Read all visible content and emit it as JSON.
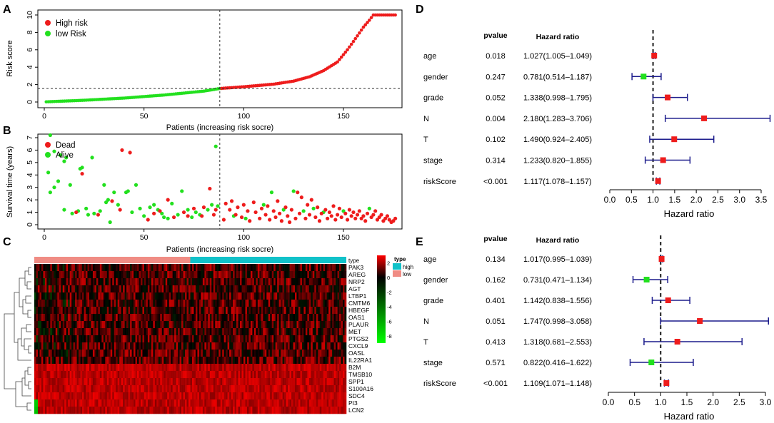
{
  "colors": {
    "high": "#ee1c1c",
    "low": "#22e01e",
    "dead": "#ee1c1c",
    "alive": "#22e01e",
    "navy": "#1c1c8c",
    "type_high": "#11c2c9",
    "type_low": "#f08c84",
    "heat_red": "#ff0000",
    "heat_black": "#000000",
    "heat_green": "#00ff00"
  },
  "chart_data": [
    {
      "panel": "A",
      "type": "scatter",
      "title": "",
      "xlabel": "Patients (increasing risk socre)",
      "ylabel": "Risk score",
      "xlim": [
        0,
        178
      ],
      "ylim": [
        0,
        10.5
      ],
      "xticks": [
        0,
        50,
        100,
        150
      ],
      "yticks": [
        0,
        2,
        4,
        6,
        8,
        10
      ],
      "cutoff_x": 88,
      "cutoff_y": 1.55,
      "n_patients": 176,
      "series": [
        {
          "name": "High risk",
          "color_key": "high"
        },
        {
          "name": "low Risk",
          "color_key": "low"
        }
      ],
      "curve_anchors": {
        "x": [
          1,
          20,
          40,
          60,
          80,
          88,
          100,
          115,
          125,
          133,
          140,
          147,
          152,
          157,
          160,
          163,
          165,
          176
        ],
        "y": [
          0.02,
          0.2,
          0.45,
          0.8,
          1.25,
          1.55,
          1.75,
          2.05,
          2.4,
          2.9,
          3.6,
          4.6,
          6.0,
          7.6,
          8.6,
          9.4,
          10.0,
          10.0
        ]
      },
      "legend": [
        "High risk",
        "low Risk"
      ]
    },
    {
      "panel": "B",
      "type": "scatter",
      "title": "",
      "xlabel": "Patients (increasing risk socre)",
      "ylabel": "Survival time (years)",
      "xlim": [
        0,
        178
      ],
      "ylim": [
        0,
        7.3
      ],
      "xticks": [
        0,
        50,
        100,
        150
      ],
      "yticks": [
        0,
        1,
        2,
        3,
        4,
        5,
        6,
        7
      ],
      "cutoff_x": 88,
      "series": [
        {
          "name": "Dead",
          "color_key": "dead"
        },
        {
          "name": "Alive",
          "color_key": "alive"
        }
      ],
      "legend": [
        "Dead",
        "Alive"
      ],
      "points": [
        {
          "x": 2,
          "y": 4.2,
          "s": "Alive"
        },
        {
          "x": 3,
          "y": 7.2,
          "s": "Alive"
        },
        {
          "x": 3,
          "y": 2.6,
          "s": "Alive"
        },
        {
          "x": 5,
          "y": 5.9,
          "s": "Alive"
        },
        {
          "x": 5,
          "y": 3.0,
          "s": "Alive"
        },
        {
          "x": 7,
          "y": 3.5,
          "s": "Alive"
        },
        {
          "x": 8,
          "y": 5.6,
          "s": "Alive"
        },
        {
          "x": 10,
          "y": 5.1,
          "s": "Alive"
        },
        {
          "x": 10,
          "y": 1.2,
          "s": "Alive"
        },
        {
          "x": 11,
          "y": 5.4,
          "s": "Alive"
        },
        {
          "x": 13,
          "y": 3.2,
          "s": "Alive"
        },
        {
          "x": 14,
          "y": 0.9,
          "s": "Alive"
        },
        {
          "x": 17,
          "y": 1.1,
          "s": "Alive"
        },
        {
          "x": 18,
          "y": 4.5,
          "s": "Alive"
        },
        {
          "x": 19,
          "y": 4.6,
          "s": "Alive"
        },
        {
          "x": 21,
          "y": 1.3,
          "s": "Alive"
        },
        {
          "x": 22,
          "y": 0.8,
          "s": "Alive"
        },
        {
          "x": 24,
          "y": 5.4,
          "s": "Alive"
        },
        {
          "x": 25,
          "y": 0.9,
          "s": "Alive"
        },
        {
          "x": 28,
          "y": 1.1,
          "s": "Alive"
        },
        {
          "x": 30,
          "y": 3.2,
          "s": "Alive"
        },
        {
          "x": 31,
          "y": 1.8,
          "s": "Alive"
        },
        {
          "x": 32,
          "y": 2.0,
          "s": "Alive"
        },
        {
          "x": 33,
          "y": 0.2,
          "s": "Alive"
        },
        {
          "x": 35,
          "y": 2.6,
          "s": "Alive"
        },
        {
          "x": 37,
          "y": 1.6,
          "s": "Alive"
        },
        {
          "x": 41,
          "y": 2.6,
          "s": "Alive"
        },
        {
          "x": 42,
          "y": 2.7,
          "s": "Alive"
        },
        {
          "x": 44,
          "y": 1.0,
          "s": "Alive"
        },
        {
          "x": 46,
          "y": 3.2,
          "s": "Alive"
        },
        {
          "x": 48,
          "y": 1.3,
          "s": "Alive"
        },
        {
          "x": 50,
          "y": 0.7,
          "s": "Alive"
        },
        {
          "x": 53,
          "y": 1.4,
          "s": "Alive"
        },
        {
          "x": 55,
          "y": 1.6,
          "s": "Alive"
        },
        {
          "x": 57,
          "y": 1.2,
          "s": "Alive"
        },
        {
          "x": 59,
          "y": 0.9,
          "s": "Alive"
        },
        {
          "x": 60,
          "y": 0.6,
          "s": "Alive"
        },
        {
          "x": 62,
          "y": 0.5,
          "s": "Alive"
        },
        {
          "x": 64,
          "y": 1.7,
          "s": "Alive"
        },
        {
          "x": 67,
          "y": 0.8,
          "s": "Alive"
        },
        {
          "x": 69,
          "y": 2.7,
          "s": "Alive"
        },
        {
          "x": 72,
          "y": 1.2,
          "s": "Alive"
        },
        {
          "x": 74,
          "y": 0.6,
          "s": "Alive"
        },
        {
          "x": 76,
          "y": 1.0,
          "s": "Alive"
        },
        {
          "x": 78,
          "y": 0.8,
          "s": "Alive"
        },
        {
          "x": 82,
          "y": 1.2,
          "s": "Alive"
        },
        {
          "x": 84,
          "y": 1.6,
          "s": "Alive"
        },
        {
          "x": 86,
          "y": 6.3,
          "s": "Alive"
        },
        {
          "x": 87,
          "y": 1.5,
          "s": "Alive"
        },
        {
          "x": 95,
          "y": 0.7,
          "s": "Alive"
        },
        {
          "x": 101,
          "y": 0.5,
          "s": "Alive"
        },
        {
          "x": 110,
          "y": 1.6,
          "s": "Alive"
        },
        {
          "x": 114,
          "y": 2.6,
          "s": "Alive"
        },
        {
          "x": 120,
          "y": 1.2,
          "s": "Alive"
        },
        {
          "x": 125,
          "y": 2.7,
          "s": "Alive"
        },
        {
          "x": 130,
          "y": 1.1,
          "s": "Alive"
        },
        {
          "x": 135,
          "y": 1.3,
          "s": "Alive"
        },
        {
          "x": 140,
          "y": 1.0,
          "s": "Alive"
        },
        {
          "x": 150,
          "y": 1.1,
          "s": "Alive"
        },
        {
          "x": 163,
          "y": 1.3,
          "s": "Alive"
        },
        {
          "x": 16,
          "y": 1.0,
          "s": "Dead"
        },
        {
          "x": 19,
          "y": 4.1,
          "s": "Dead"
        },
        {
          "x": 27,
          "y": 0.8,
          "s": "Dead"
        },
        {
          "x": 34,
          "y": 1.9,
          "s": "Dead"
        },
        {
          "x": 38,
          "y": 1.2,
          "s": "Dead"
        },
        {
          "x": 39,
          "y": 6.0,
          "s": "Dead"
        },
        {
          "x": 43,
          "y": 5.8,
          "s": "Dead"
        },
        {
          "x": 52,
          "y": 0.4,
          "s": "Dead"
        },
        {
          "x": 55,
          "y": 0.9,
          "s": "Dead"
        },
        {
          "x": 58,
          "y": 1.1,
          "s": "Dead"
        },
        {
          "x": 62,
          "y": 2.0,
          "s": "Dead"
        },
        {
          "x": 65,
          "y": 0.6,
          "s": "Dead"
        },
        {
          "x": 70,
          "y": 1.0,
          "s": "Dead"
        },
        {
          "x": 72,
          "y": 0.7,
          "s": "Dead"
        },
        {
          "x": 75,
          "y": 1.3,
          "s": "Dead"
        },
        {
          "x": 79,
          "y": 0.7,
          "s": "Dead"
        },
        {
          "x": 80,
          "y": 1.4,
          "s": "Dead"
        },
        {
          "x": 83,
          "y": 2.9,
          "s": "Dead"
        },
        {
          "x": 85,
          "y": 0.8,
          "s": "Dead"
        },
        {
          "x": 86,
          "y": 1.2,
          "s": "Dead"
        },
        {
          "x": 90,
          "y": 0.4,
          "s": "Dead"
        },
        {
          "x": 91,
          "y": 1.7,
          "s": "Dead"
        },
        {
          "x": 93,
          "y": 1.2,
          "s": "Dead"
        },
        {
          "x": 94,
          "y": 1.9,
          "s": "Dead"
        },
        {
          "x": 96,
          "y": 0.8,
          "s": "Dead"
        },
        {
          "x": 97,
          "y": 1.4,
          "s": "Dead"
        },
        {
          "x": 99,
          "y": 0.6,
          "s": "Dead"
        },
        {
          "x": 100,
          "y": 1.6,
          "s": "Dead"
        },
        {
          "x": 102,
          "y": 1.1,
          "s": "Dead"
        },
        {
          "x": 103,
          "y": 0.3,
          "s": "Dead"
        },
        {
          "x": 105,
          "y": 1.8,
          "s": "Dead"
        },
        {
          "x": 106,
          "y": 1.0,
          "s": "Dead"
        },
        {
          "x": 108,
          "y": 0.5,
          "s": "Dead"
        },
        {
          "x": 109,
          "y": 1.3,
          "s": "Dead"
        },
        {
          "x": 111,
          "y": 0.8,
          "s": "Dead"
        },
        {
          "x": 112,
          "y": 1.5,
          "s": "Dead"
        },
        {
          "x": 113,
          "y": 0.4,
          "s": "Dead"
        },
        {
          "x": 115,
          "y": 1.1,
          "s": "Dead"
        },
        {
          "x": 116,
          "y": 0.6,
          "s": "Dead"
        },
        {
          "x": 117,
          "y": 1.9,
          "s": "Dead"
        },
        {
          "x": 118,
          "y": 0.9,
          "s": "Dead"
        },
        {
          "x": 119,
          "y": 0.3,
          "s": "Dead"
        },
        {
          "x": 121,
          "y": 1.4,
          "s": "Dead"
        },
        {
          "x": 122,
          "y": 0.7,
          "s": "Dead"
        },
        {
          "x": 123,
          "y": 0.2,
          "s": "Dead"
        },
        {
          "x": 124,
          "y": 1.2,
          "s": "Dead"
        },
        {
          "x": 126,
          "y": 0.5,
          "s": "Dead"
        },
        {
          "x": 127,
          "y": 2.6,
          "s": "Dead"
        },
        {
          "x": 128,
          "y": 0.9,
          "s": "Dead"
        },
        {
          "x": 129,
          "y": 2.2,
          "s": "Dead"
        },
        {
          "x": 131,
          "y": 0.5,
          "s": "Dead"
        },
        {
          "x": 132,
          "y": 1.6,
          "s": "Dead"
        },
        {
          "x": 133,
          "y": 0.8,
          "s": "Dead"
        },
        {
          "x": 134,
          "y": 2.0,
          "s": "Dead"
        },
        {
          "x": 136,
          "y": 0.6,
          "s": "Dead"
        },
        {
          "x": 137,
          "y": 1.4,
          "s": "Dead"
        },
        {
          "x": 138,
          "y": 0.3,
          "s": "Dead"
        },
        {
          "x": 139,
          "y": 0.9,
          "s": "Dead"
        },
        {
          "x": 141,
          "y": 1.2,
          "s": "Dead"
        },
        {
          "x": 142,
          "y": 0.5,
          "s": "Dead"
        },
        {
          "x": 143,
          "y": 1.0,
          "s": "Dead"
        },
        {
          "x": 144,
          "y": 0.7,
          "s": "Dead"
        },
        {
          "x": 145,
          "y": 1.5,
          "s": "Dead"
        },
        {
          "x": 146,
          "y": 0.4,
          "s": "Dead"
        },
        {
          "x": 147,
          "y": 0.8,
          "s": "Dead"
        },
        {
          "x": 148,
          "y": 1.3,
          "s": "Dead"
        },
        {
          "x": 149,
          "y": 0.6,
          "s": "Dead"
        },
        {
          "x": 151,
          "y": 0.9,
          "s": "Dead"
        },
        {
          "x": 152,
          "y": 0.4,
          "s": "Dead"
        },
        {
          "x": 153,
          "y": 1.2,
          "s": "Dead"
        },
        {
          "x": 154,
          "y": 0.7,
          "s": "Dead"
        },
        {
          "x": 155,
          "y": 1.0,
          "s": "Dead"
        },
        {
          "x": 156,
          "y": 0.5,
          "s": "Dead"
        },
        {
          "x": 157,
          "y": 0.8,
          "s": "Dead"
        },
        {
          "x": 158,
          "y": 1.1,
          "s": "Dead"
        },
        {
          "x": 159,
          "y": 0.5,
          "s": "Dead"
        },
        {
          "x": 160,
          "y": 0.7,
          "s": "Dead"
        },
        {
          "x": 161,
          "y": 0.3,
          "s": "Dead"
        },
        {
          "x": 162,
          "y": 0.9,
          "s": "Dead"
        },
        {
          "x": 164,
          "y": 0.6,
          "s": "Dead"
        },
        {
          "x": 165,
          "y": 0.8,
          "s": "Dead"
        },
        {
          "x": 166,
          "y": 1.1,
          "s": "Dead"
        },
        {
          "x": 167,
          "y": 0.4,
          "s": "Dead"
        },
        {
          "x": 168,
          "y": 0.6,
          "s": "Dead"
        },
        {
          "x": 169,
          "y": 0.8,
          "s": "Dead"
        },
        {
          "x": 170,
          "y": 0.3,
          "s": "Dead"
        },
        {
          "x": 171,
          "y": 0.5,
          "s": "Dead"
        },
        {
          "x": 172,
          "y": 0.7,
          "s": "Dead"
        },
        {
          "x": 173,
          "y": 0.4,
          "s": "Dead"
        },
        {
          "x": 174,
          "y": 0.2,
          "s": "Dead"
        },
        {
          "x": 175,
          "y": 0.3,
          "s": "Dead"
        },
        {
          "x": 176,
          "y": 0.5,
          "s": "Dead"
        }
      ]
    },
    {
      "panel": "C",
      "type": "heatmap",
      "title": "",
      "genes": [
        "PAK3",
        "AREG",
        "NRP2",
        "AGT",
        "LTBP1",
        "CMTM6",
        "HBEGF",
        "OAS1",
        "PLAUR",
        "MET",
        "PTGS2",
        "CXCL9",
        "OASL",
        "IL22RA1",
        "B2M",
        "TMSB10",
        "SPP1",
        "S100A16",
        "SDC4",
        "PI3",
        "LCN2"
      ],
      "type_label": "type",
      "type_levels": [
        "high",
        "low"
      ],
      "low_fraction": 0.5,
      "n_columns": 176,
      "colorbar_ticks": [
        2,
        0,
        -2,
        -4,
        -6,
        -8
      ],
      "colorbar_range": [
        -9,
        3
      ]
    },
    {
      "panel": "D",
      "type": "forest",
      "header_pvalue": "pvalue",
      "header_hr": "Hazard ratio",
      "xlabel": "Hazard ratio",
      "xlim": [
        0,
        3.7
      ],
      "xticks": [
        "0.0",
        "0.5",
        "1.0",
        "1.5",
        "2.0",
        "2.5",
        "3.0",
        "3.5"
      ],
      "rows": [
        {
          "label": "age",
          "pvalue": "0.018",
          "hr_text": "1.027(1.005–1.049)",
          "hr": 1.027,
          "lo": 1.005,
          "hi": 1.049
        },
        {
          "label": "gender",
          "pvalue": "0.247",
          "hr_text": "0.781(0.514–1.187)",
          "hr": 0.781,
          "lo": 0.514,
          "hi": 1.187
        },
        {
          "label": "grade",
          "pvalue": "0.052",
          "hr_text": "1.338(0.998–1.795)",
          "hr": 1.338,
          "lo": 0.998,
          "hi": 1.795
        },
        {
          "label": "N",
          "pvalue": "0.004",
          "hr_text": "2.180(1.283–3.706)",
          "hr": 2.18,
          "lo": 1.283,
          "hi": 3.706
        },
        {
          "label": "T",
          "pvalue": "0.102",
          "hr_text": "1.490(0.924–2.405)",
          "hr": 1.49,
          "lo": 0.924,
          "hi": 2.405
        },
        {
          "label": "stage",
          "pvalue": "0.314",
          "hr_text": "1.233(0.820–1.855)",
          "hr": 1.233,
          "lo": 0.82,
          "hi": 1.855
        },
        {
          "label": "riskScore",
          "pvalue": "<0.001",
          "hr_text": "1.117(1.078–1.157)",
          "hr": 1.117,
          "lo": 1.078,
          "hi": 1.157
        }
      ]
    },
    {
      "panel": "E",
      "type": "forest",
      "header_pvalue": "pvalue",
      "header_hr": "Hazard ratio",
      "xlabel": "Hazard ratio",
      "xlim": [
        0,
        3.0
      ],
      "xticks": [
        "0.0",
        "0.5",
        "1.0",
        "1.5",
        "2.0",
        "2.5",
        "3.0"
      ],
      "rows": [
        {
          "label": "age",
          "pvalue": "0.134",
          "hr_text": "1.017(0.995–1.039)",
          "hr": 1.017,
          "lo": 0.995,
          "hi": 1.039
        },
        {
          "label": "gender",
          "pvalue": "0.162",
          "hr_text": "0.731(0.471–1.134)",
          "hr": 0.731,
          "lo": 0.471,
          "hi": 1.134
        },
        {
          "label": "grade",
          "pvalue": "0.401",
          "hr_text": "1.142(0.838–1.556)",
          "hr": 1.142,
          "lo": 0.838,
          "hi": 1.556
        },
        {
          "label": "N",
          "pvalue": "0.051",
          "hr_text": "1.747(0.998–3.058)",
          "hr": 1.747,
          "lo": 0.998,
          "hi": 3.058
        },
        {
          "label": "T",
          "pvalue": "0.413",
          "hr_text": "1.318(0.681–2.553)",
          "hr": 1.318,
          "lo": 0.681,
          "hi": 2.553
        },
        {
          "label": "stage",
          "pvalue": "0.571",
          "hr_text": "0.822(0.416–1.622)",
          "hr": 0.822,
          "lo": 0.416,
          "hi": 1.622
        },
        {
          "label": "riskScore",
          "pvalue": "<0.001",
          "hr_text": "1.109(1.071–1.148)",
          "hr": 1.109,
          "lo": 1.071,
          "hi": 1.148
        }
      ]
    }
  ]
}
